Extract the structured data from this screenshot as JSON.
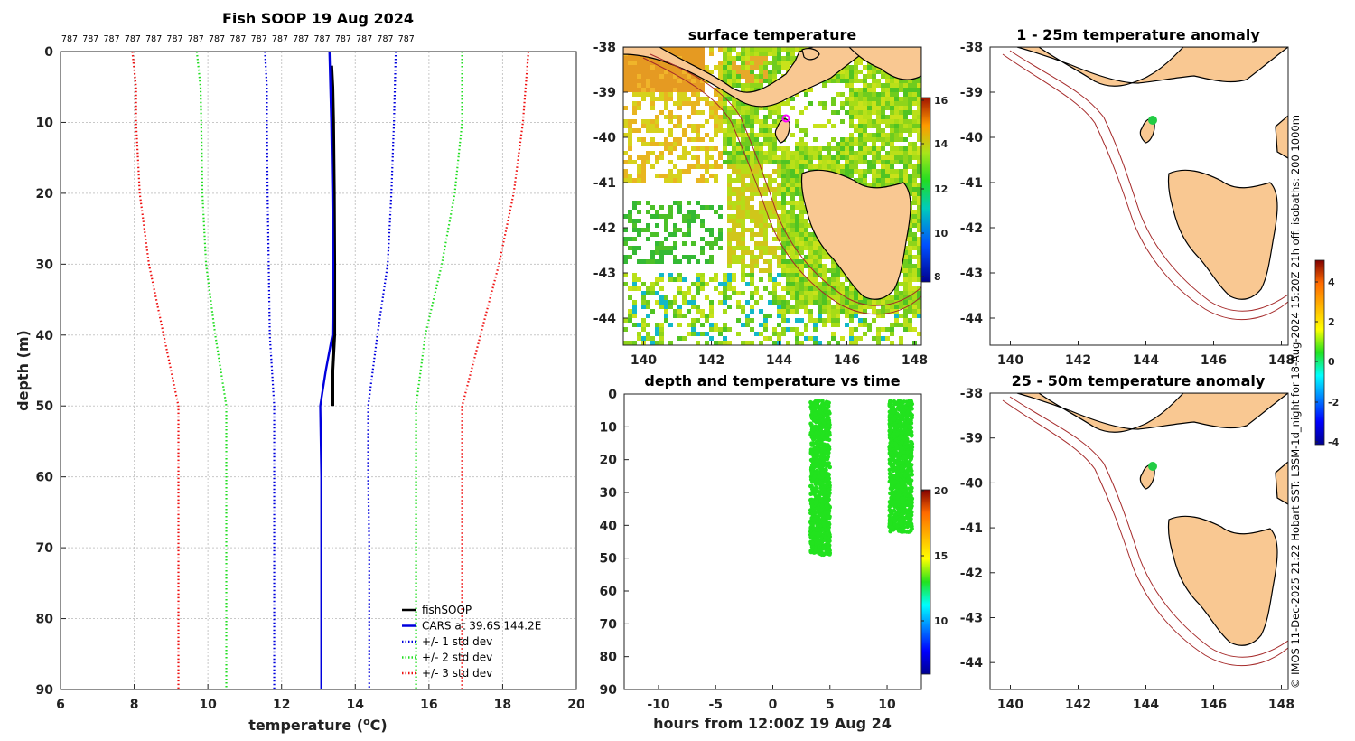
{
  "profile": {
    "title": "Fish SOOP 19 Aug 2024",
    "count_label": "787",
    "count_n": 17,
    "xlabel": "temperature (",
    "xlabel_sup": "o",
    "xlabel_end": "C)",
    "ylabel": "depth (m)",
    "xticks": [
      "6",
      "8",
      "10",
      "12",
      "14",
      "16",
      "18",
      "20"
    ],
    "yticks": [
      "0",
      "10",
      "20",
      "30",
      "40",
      "50",
      "60",
      "70",
      "80",
      "90"
    ],
    "legend": [
      {
        "label": "fishSOOP",
        "color": "#000000",
        "dotted": false
      },
      {
        "label": "CARS at 39.6S 144.2E",
        "color": "#0000dd",
        "dotted": false
      },
      {
        "label": "+/- 1 std dev",
        "color": "#0000dd",
        "dotted": true
      },
      {
        "label": "+/- 2 std dev",
        "color": "#22dd22",
        "dotted": true
      },
      {
        "label": "+/- 3 std dev",
        "color": "#ee1111",
        "dotted": true
      }
    ]
  },
  "sst": {
    "title": "surface temperature",
    "xticks": [
      "140",
      "142",
      "144",
      "146",
      "148"
    ],
    "yticks": [
      "-38",
      "-39",
      "-40",
      "-41",
      "-42",
      "-43",
      "-44"
    ],
    "cbar_ticks": [
      "16",
      "14",
      "12",
      "10",
      "8"
    ]
  },
  "anom1": {
    "title": "1 - 25m temperature anomaly",
    "xticks": [
      "140",
      "142",
      "144",
      "146",
      "148"
    ],
    "yticks": [
      "-38",
      "-39",
      "-40",
      "-41",
      "-42",
      "-43",
      "-44"
    ]
  },
  "anom2": {
    "title": "25 - 50m temperature anomaly",
    "xticks": [
      "140",
      "142",
      "144",
      "146",
      "148"
    ],
    "yticks": [
      "-38",
      "-39",
      "-40",
      "-41",
      "-42",
      "-43",
      "-44"
    ]
  },
  "anom_cbar_ticks": [
    "4",
    "2",
    "0",
    "-2",
    "-4"
  ],
  "dtime": {
    "title": "depth and temperature vs time",
    "xlabel": "hours from 12:00Z 19 Aug 24",
    "xticks": [
      "-10",
      "-5",
      "0",
      "5",
      "10"
    ],
    "yticks": [
      "0",
      "10",
      "20",
      "30",
      "40",
      "50",
      "60",
      "70",
      "80",
      "90"
    ],
    "cbar_ticks": [
      "20",
      "15",
      "10"
    ]
  },
  "credit": "© IMOS 11-Dec-2025 21:22 Hobart SST: L3SM-1d_night for 18-Aug-2024 15:20Z 21h off. isobaths: 200  1000m",
  "chart_data": [
    {
      "type": "line",
      "title": "Fish SOOP 19 Aug 2024",
      "xlabel": "temperature (oC)",
      "ylabel": "depth (m)",
      "xlim": [
        6,
        20
      ],
      "ylim": [
        90,
        0
      ],
      "grid": true,
      "legend_position": "bottom-right",
      "series": [
        {
          "name": "fishSOOP",
          "color": "#000000",
          "style": "solid",
          "depth": [
            2,
            5,
            10,
            20,
            30,
            40,
            45,
            50
          ],
          "temperature": [
            13.35,
            13.38,
            13.4,
            13.42,
            13.43,
            13.43,
            13.38,
            13.38
          ]
        },
        {
          "name": "CARS at 39.6S 144.2E",
          "color": "#0000dd",
          "style": "solid",
          "depth": [
            0,
            10,
            20,
            30,
            40,
            45,
            50,
            60,
            70,
            80,
            90
          ],
          "temperature": [
            13.3,
            13.35,
            13.38,
            13.4,
            13.38,
            13.2,
            13.05,
            13.08,
            13.08,
            13.08,
            13.08
          ]
        },
        {
          "name": "-1 std dev",
          "color": "#0000dd",
          "style": "dotted",
          "depth": [
            0,
            5,
            10,
            20,
            30,
            40,
            50,
            60,
            70,
            80,
            90
          ],
          "temperature": [
            11.55,
            11.6,
            11.6,
            11.62,
            11.65,
            11.68,
            11.8,
            11.8,
            11.8,
            11.8,
            11.8
          ]
        },
        {
          "name": "+1 std dev",
          "color": "#0000dd",
          "style": "dotted",
          "depth": [
            0,
            10,
            20,
            30,
            40,
            50,
            60,
            70,
            80,
            90
          ],
          "temperature": [
            15.1,
            15.05,
            14.98,
            14.88,
            14.6,
            14.35,
            14.35,
            14.38,
            14.38,
            14.38
          ]
        },
        {
          "name": "-2 std dev",
          "color": "#22dd22",
          "style": "dotted",
          "depth": [
            0,
            5,
            10,
            20,
            30,
            40,
            50,
            60,
            70,
            80,
            90
          ],
          "temperature": [
            9.7,
            9.8,
            9.82,
            9.85,
            9.95,
            10.2,
            10.5,
            10.5,
            10.5,
            10.5,
            10.5
          ]
        },
        {
          "name": "+2 std dev",
          "color": "#22dd22",
          "style": "dotted",
          "depth": [
            0,
            10,
            20,
            30,
            40,
            50,
            60,
            70,
            80,
            90
          ],
          "temperature": [
            16.9,
            16.9,
            16.7,
            16.35,
            15.9,
            15.65,
            15.65,
            15.65,
            15.65,
            15.65
          ]
        },
        {
          "name": "-3 std dev",
          "color": "#ee1111",
          "style": "dotted",
          "depth": [
            0,
            5,
            10,
            20,
            30,
            40,
            50,
            60,
            70,
            80,
            90
          ],
          "temperature": [
            7.95,
            8.05,
            8.05,
            8.15,
            8.4,
            8.8,
            9.2,
            9.2,
            9.2,
            9.2,
            9.2
          ]
        },
        {
          "name": "+3 std dev",
          "color": "#ee1111",
          "style": "dotted",
          "depth": [
            0,
            10,
            20,
            30,
            40,
            50,
            60,
            70,
            80,
            90
          ],
          "temperature": [
            18.7,
            18.55,
            18.3,
            17.9,
            17.4,
            16.9,
            16.9,
            16.9,
            16.9,
            16.9
          ]
        }
      ]
    },
    {
      "type": "heatmap",
      "title": "surface temperature",
      "xlim": [
        139.4,
        148.2
      ],
      "ylim": [
        -44.6,
        -38
      ],
      "colorbar_range": [
        7.5,
        16.2
      ],
      "marker": {
        "lon": 144.2,
        "lat": -39.6
      }
    },
    {
      "type": "scatter",
      "title": "depth and temperature vs time",
      "xlabel": "hours from 12:00Z 19 Aug 24",
      "xlim": [
        -13,
        13
      ],
      "ylim": [
        90,
        0
      ],
      "colorbar_range": [
        5,
        20
      ],
      "clusters": [
        {
          "x_range": [
            3.3,
            5.0
          ],
          "depth_range": [
            2,
            49
          ],
          "temperature": 13.4
        },
        {
          "x_range": [
            10.2,
            12.2
          ],
          "depth_range": [
            2,
            42
          ],
          "temperature": 13.4
        }
      ]
    },
    {
      "type": "scatter",
      "title": "1 - 25m temperature anomaly",
      "xlim": [
        139.4,
        148.2
      ],
      "ylim": [
        -44.6,
        -38
      ],
      "points": [
        {
          "lon": 144.2,
          "lat": -39.6,
          "anomaly": 0.1
        }
      ]
    },
    {
      "type": "scatter",
      "title": "25 - 50m temperature anomaly",
      "xlim": [
        139.4,
        148.2
      ],
      "ylim": [
        -44.6,
        -38
      ],
      "points": [
        {
          "lon": 144.2,
          "lat": -39.6,
          "anomaly": 0.1
        }
      ]
    }
  ]
}
